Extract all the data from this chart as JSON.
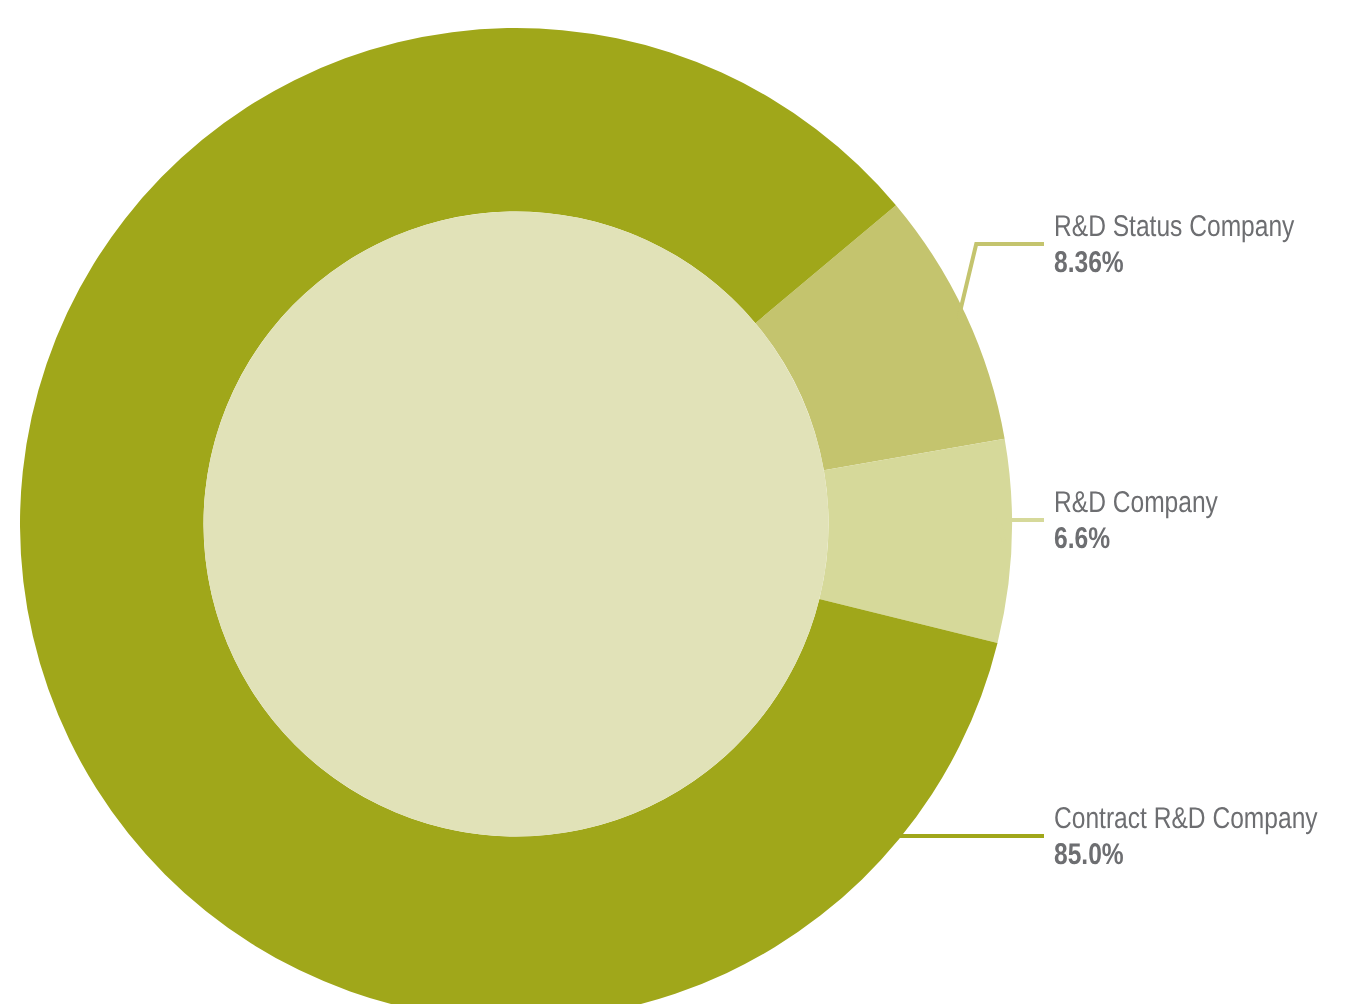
{
  "chart_data": {
    "type": "donut",
    "categories": [
      "R&D Status Company",
      "R&D Company",
      "Contract R&D Company"
    ],
    "values": [
      8.36,
      6.6,
      85.0
    ],
    "colors": [
      "#c4c46e",
      "#d6d99a",
      "#a0a71a"
    ],
    "value_labels": [
      "8.36%",
      "6.6%",
      "85.0%"
    ]
  }
}
